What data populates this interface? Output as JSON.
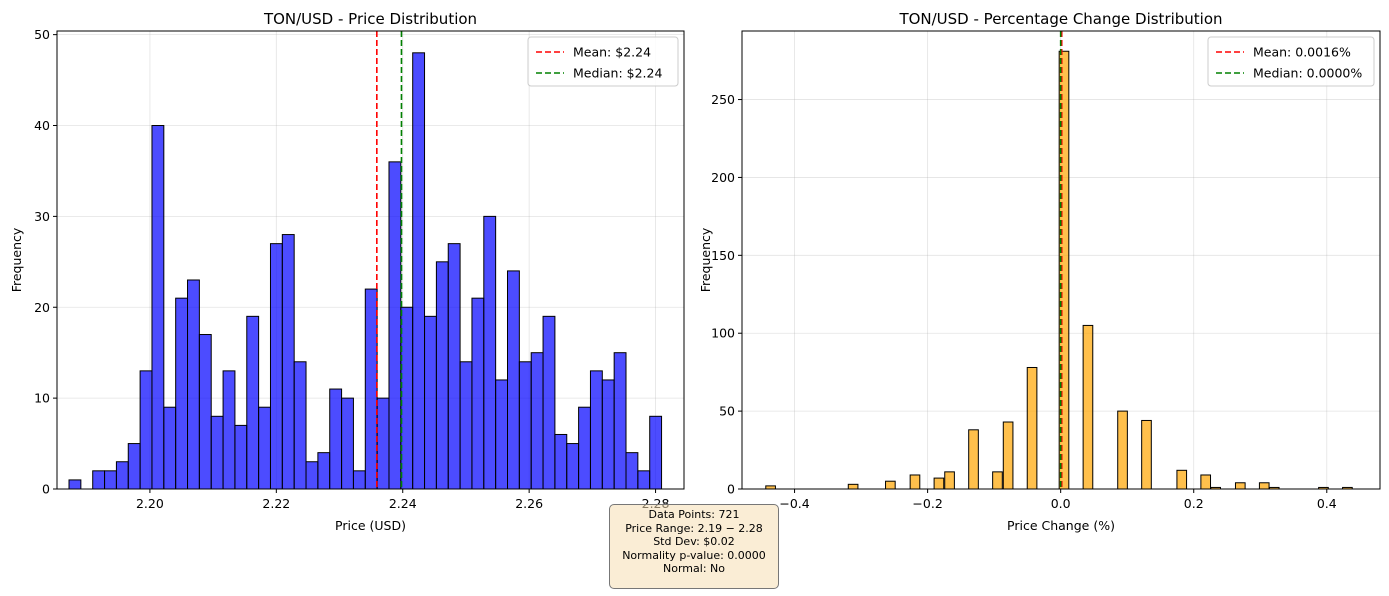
{
  "chart_data": [
    {
      "type": "bar",
      "title": "TON/USD - Price Distribution",
      "xlabel": "Price (USD)",
      "ylabel": "Frequency",
      "xlim": [
        2.1853,
        2.2845
      ],
      "ylim": [
        0,
        50.4
      ],
      "xticks": [
        "2.20",
        "2.22",
        "2.24",
        "2.26",
        "2.28"
      ],
      "xtick_values": [
        2.2,
        2.22,
        2.24,
        2.26,
        2.28
      ],
      "yticks": [
        0,
        10,
        20,
        30,
        40,
        50
      ],
      "bin_start": 2.1872,
      "bin_width": 0.001875,
      "values": [
        1,
        0,
        2,
        2,
        3,
        5,
        13,
        40,
        9,
        21,
        23,
        17,
        8,
        13,
        7,
        19,
        9,
        27,
        28,
        14,
        3,
        4,
        11,
        10,
        2,
        22,
        10,
        36,
        20,
        48,
        19,
        25,
        27,
        14,
        21,
        30,
        12,
        24,
        14,
        15,
        19,
        6,
        5,
        9,
        13,
        12,
        15,
        4,
        2,
        8
      ],
      "bar_color": "#0000ff",
      "grid": true,
      "legend_position": "top-right",
      "lines": [
        {
          "label": "Mean: $2.24",
          "x": 2.2359,
          "color": "#ff0000"
        },
        {
          "label": "Median: $2.24",
          "x": 2.2398,
          "color": "#008000"
        }
      ]
    },
    {
      "type": "bar",
      "title": "TON/USD - Percentage Change Distribution",
      "xlabel": "Price Change (%)",
      "ylabel": "Frequency",
      "xlim": [
        -0.479,
        0.48
      ],
      "ylim": [
        0,
        294
      ],
      "xticks": [
        "−0.4",
        "−0.2",
        "0.0",
        "0.2",
        "0.4"
      ],
      "xtick_values": [
        -0.4,
        -0.2,
        0.0,
        0.2,
        0.4
      ],
      "yticks": [
        0,
        50,
        100,
        150,
        200,
        250
      ],
      "bars": [
        {
          "x": -0.436,
          "v": 2
        },
        {
          "x": -0.312,
          "v": 3
        },
        {
          "x": -0.256,
          "v": 5
        },
        {
          "x": -0.219,
          "v": 9
        },
        {
          "x": -0.183,
          "v": 7
        },
        {
          "x": -0.167,
          "v": 11
        },
        {
          "x": -0.131,
          "v": 38
        },
        {
          "x": -0.095,
          "v": 11
        },
        {
          "x": -0.079,
          "v": 43
        },
        {
          "x": -0.043,
          "v": 78
        },
        {
          "x": 0.005,
          "v": 281
        },
        {
          "x": 0.041,
          "v": 105
        },
        {
          "x": 0.093,
          "v": 50
        },
        {
          "x": 0.129,
          "v": 44
        },
        {
          "x": 0.182,
          "v": 12
        },
        {
          "x": 0.218,
          "v": 9
        },
        {
          "x": 0.233,
          "v": 1
        },
        {
          "x": 0.27,
          "v": 4
        },
        {
          "x": 0.306,
          "v": 4
        },
        {
          "x": 0.321,
          "v": 1
        },
        {
          "x": 0.395,
          "v": 1
        },
        {
          "x": 0.431,
          "v": 1
        }
      ],
      "bar_color": "#ffa500",
      "grid": true,
      "legend_position": "top-right",
      "lines": [
        {
          "label": "Mean: 0.0016%",
          "x": 0.0016,
          "color": "#ff0000"
        },
        {
          "label": "Median: 0.0000%",
          "x": 0.0,
          "color": "#008000"
        }
      ]
    }
  ],
  "stats": {
    "line1": "Data Points: 721",
    "line2": "Price Range: 2.19 − 2.28",
    "line3": "Std Dev: $0.02",
    "line4": "Normality p-value: 0.0000",
    "line5": "Normal: No"
  }
}
